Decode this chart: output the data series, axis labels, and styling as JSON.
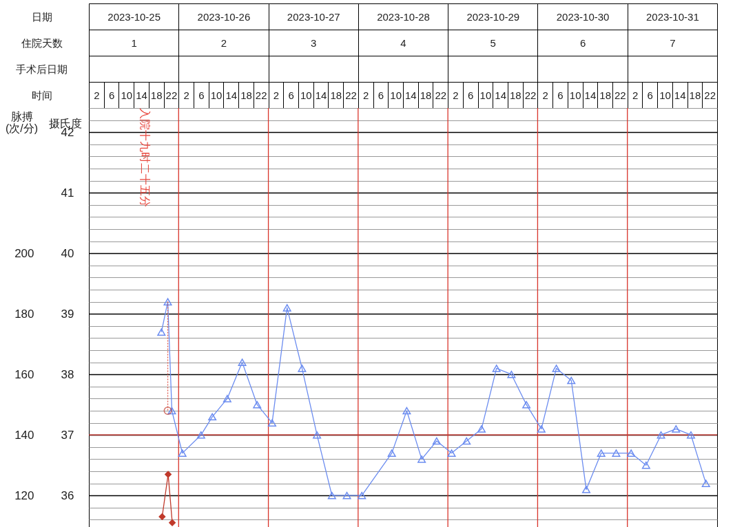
{
  "chart_data": {
    "type": "line",
    "x2label": "日期",
    "x2lim": [
      "2023-10-25T00:00",
      "2023-11-01T00:00"
    ],
    "x2ticks": [
      {
        "value": "2023-10-25T12:00",
        "label": "2023-10-25"
      },
      {
        "value": "2023-10-26T12:00",
        "label": "2023-10-26"
      },
      {
        "value": "2023-10-27T12:00",
        "label": "2023-10-27"
      },
      {
        "value": "2023-10-28T12:00",
        "label": "2023-10-28"
      },
      {
        "value": "2023-10-29T12:00",
        "label": "2023-10-29"
      },
      {
        "value": "2023-10-30T12:00",
        "label": "2023-10-30"
      },
      {
        "value": "2023-10-31T12:00",
        "label": "2023-10-31"
      }
    ],
    "xlabel": "时间",
    "xlim": [
      "2023-10-25T00:00",
      "2023-11-01T00:00"
    ],
    "xticks": [
      {
        "value": "2023-10-25T02:00",
        "label": "2"
      },
      {
        "value": "2023-10-25T06:00",
        "label": "6"
      },
      {
        "value": "2023-10-25T10:00",
        "label": "10"
      },
      {
        "value": "2023-10-25T14:00",
        "label": "14"
      },
      {
        "value": "2023-10-25T18:00",
        "label": "18"
      },
      {
        "value": "2023-10-25T22:00",
        "label": "22"
      },
      {
        "value": "2023-10-26T02:00",
        "label": "2"
      },
      {
        "value": "2023-10-26T06:00",
        "label": "6"
      },
      {
        "value": "2023-10-26T10:00",
        "label": "10"
      },
      {
        "value": "2023-10-26T14:00",
        "label": "14"
      },
      {
        "value": "2023-10-26T18:00",
        "label": "18"
      },
      {
        "value": "2023-10-26T22:00",
        "label": "22"
      },
      {
        "value": "2023-10-27T02:00",
        "label": "2"
      },
      {
        "value": "2023-10-27T06:00",
        "label": "6"
      },
      {
        "value": "2023-10-27T10:00",
        "label": "10"
      },
      {
        "value": "2023-10-27T14:00",
        "label": "14"
      },
      {
        "value": "2023-10-27T18:00",
        "label": "18"
      },
      {
        "value": "2023-10-27T22:00",
        "label": "22"
      },
      {
        "value": "2023-10-28T02:00",
        "label": "2"
      },
      {
        "value": "2023-10-28T06:00",
        "label": "6"
      },
      {
        "value": "2023-10-28T10:00",
        "label": "10"
      },
      {
        "value": "2023-10-28T14:00",
        "label": "14"
      },
      {
        "value": "2023-10-28T18:00",
        "label": "18"
      },
      {
        "value": "2023-10-28T22:00",
        "label": "22"
      },
      {
        "value": "2023-10-29T02:00",
        "label": "2"
      },
      {
        "value": "2023-10-29T06:00",
        "label": "6"
      },
      {
        "value": "2023-10-29T10:00",
        "label": "10"
      },
      {
        "value": "2023-10-29T14:00",
        "label": "14"
      },
      {
        "value": "2023-10-29T18:00",
        "label": "18"
      },
      {
        "value": "2023-10-29T22:00",
        "label": "22"
      },
      {
        "value": "2023-10-30T02:00",
        "label": "2"
      },
      {
        "value": "2023-10-30T06:00",
        "label": "6"
      },
      {
        "value": "2023-10-30T10:00",
        "label": "10"
      },
      {
        "value": "2023-10-30T14:00",
        "label": "14"
      },
      {
        "value": "2023-10-30T18:00",
        "label": "18"
      },
      {
        "value": "2023-10-30T22:00",
        "label": "22"
      },
      {
        "value": "2023-10-31T02:00",
        "label": "2"
      },
      {
        "value": "2023-10-31T06:00",
        "label": "6"
      },
      {
        "value": "2023-10-31T10:00",
        "label": "10"
      },
      {
        "value": "2023-10-31T14:00",
        "label": "14"
      },
      {
        "value": "2023-10-31T18:00",
        "label": "18"
      },
      {
        "value": "2023-10-31T22:00",
        "label": "22"
      }
    ],
    "ylabel": "摄氏度",
    "ylim": [
      35.4,
      42.4
    ],
    "yticks": [
      {
        "value": 35.6,
        "label": null
      },
      {
        "value": 35.8,
        "label": null
      },
      36,
      {
        "value": 36.2,
        "label": null
      },
      {
        "value": 36.4,
        "label": null
      },
      {
        "value": 36.6,
        "label": null
      },
      {
        "value": 36.8,
        "label": null
      },
      37,
      {
        "value": 37.2,
        "label": null
      },
      {
        "value": 37.4,
        "label": null
      },
      {
        "value": 37.6,
        "label": null
      },
      {
        "value": 37.8,
        "label": null
      },
      38,
      {
        "value": 38.2,
        "label": null
      },
      {
        "value": 38.4,
        "label": null
      },
      {
        "value": 38.6,
        "label": null
      },
      {
        "value": 38.8,
        "label": null
      },
      39,
      {
        "value": 39.2,
        "label": null
      },
      {
        "value": 39.4,
        "label": null
      },
      {
        "value": 39.6,
        "label": null
      },
      {
        "value": 39.8,
        "label": null
      },
      40,
      {
        "value": 40.2,
        "label": null
      },
      {
        "value": 40.4,
        "label": null
      },
      {
        "value": 40.6,
        "label": null
      },
      {
        "value": 40.8,
        "label": null
      },
      41,
      {
        "value": 41.2,
        "label": null
      },
      {
        "value": 41.4,
        "label": null
      },
      {
        "value": 41.6,
        "label": null
      },
      {
        "value": 41.8,
        "label": null
      },
      42,
      {
        "value": 42.2,
        "label": null
      },
      {
        "value": 42.4,
        "label": null
      }
    ],
    "y2label": "脉搏 (次/分)",
    "y2lim": [
      108,
      248
    ],
    "y2ticks": [
      120,
      140,
      160,
      180,
      200
    ],
    "grid": true,
    "series": [
      {
        "color": "#6b8cf0",
        "marker": "triangle",
        "x": [
          "2023-10-25T19:24",
          "2023-10-25T21:06",
          "2023-10-25T22:12",
          "2023-10-26T01:00",
          "2023-10-26T06:00",
          "2023-10-26T09:00",
          "2023-10-26T13:00",
          "2023-10-26T17:00",
          "2023-10-26T21:00",
          "2023-10-27T01:00",
          "2023-10-27T05:00",
          "2023-10-27T09:00",
          "2023-10-27T13:00",
          "2023-10-27T17:00",
          "2023-10-27T21:00",
          "2023-10-28T01:00",
          "2023-10-28T09:00",
          "2023-10-28T13:00",
          "2023-10-28T17:00",
          "2023-10-28T21:00",
          "2023-10-29T01:00",
          "2023-10-29T05:00",
          "2023-10-29T09:00",
          "2023-10-29T13:00",
          "2023-10-29T17:00",
          "2023-10-29T21:00",
          "2023-10-30T01:00",
          "2023-10-30T05:00",
          "2023-10-30T09:00",
          "2023-10-30T13:00",
          "2023-10-30T17:00",
          "2023-10-30T21:00",
          "2023-10-31T01:00",
          "2023-10-31T05:00",
          "2023-10-31T09:00",
          "2023-10-31T13:00",
          "2023-10-31T17:00",
          "2023-10-31T21:00"
        ],
        "values": [
          38.7,
          39.2,
          37.4,
          36.7,
          37.0,
          37.3,
          37.6,
          38.2,
          37.5,
          37.2,
          39.1,
          38.1,
          37.0,
          36.0,
          36.0,
          36.0,
          36.7,
          37.4,
          36.6,
          36.9,
          36.7,
          36.9,
          37.1,
          38.1,
          38.0,
          37.5,
          37.1,
          38.1,
          37.9,
          36.1,
          36.7,
          36.7,
          36.7,
          36.5,
          37.0,
          37.1,
          37.0,
          36.2
        ]
      },
      {
        "type": "line",
        "color": "#e05a4f",
        "marker": "none",
        "line_style": "dotted",
        "x": [
          "2023-10-25T21:06",
          "2023-10-25T21:06"
        ],
        "values": [
          39.2,
          37.4
        ]
      },
      {
        "type": "scatter",
        "color": "#c0392b",
        "marker": "circle",
        "x": [
          "2023-10-25T21:06"
        ],
        "values": [
          37.4
        ]
      },
      {
        "type": "line",
        "color": "#c0392b",
        "marker": "diamond",
        "axis": "y2",
        "x": [
          "2023-10-25T19:36",
          "2023-10-25T21:12",
          "2023-10-25T22:18"
        ],
        "values": [
          113,
          127,
          111
        ]
      }
    ],
    "ref_lines": [
      {
        "axis": "x",
        "value": "2023-10-26T00:00",
        "color": "#d9342b"
      },
      {
        "axis": "x",
        "value": "2023-10-27T00:00",
        "color": "#d9342b"
      },
      {
        "axis": "x",
        "value": "2023-10-28T00:00",
        "color": "#d9342b"
      },
      {
        "axis": "x",
        "value": "2023-10-29T00:00",
        "color": "#d9342b"
      },
      {
        "axis": "x",
        "value": "2023-10-30T00:00",
        "color": "#d9342b"
      },
      {
        "axis": "x",
        "value": "2023-10-31T00:00",
        "color": "#d9342b"
      },
      {
        "axis": "y",
        "value": 37,
        "color": "#d9342b"
      }
    ],
    "annotations": [
      "住院天数",
      "1",
      "2",
      "3",
      "4",
      "5",
      "6",
      "7",
      "手术后日期",
      "入院十九时二十五分"
    ]
  }
}
